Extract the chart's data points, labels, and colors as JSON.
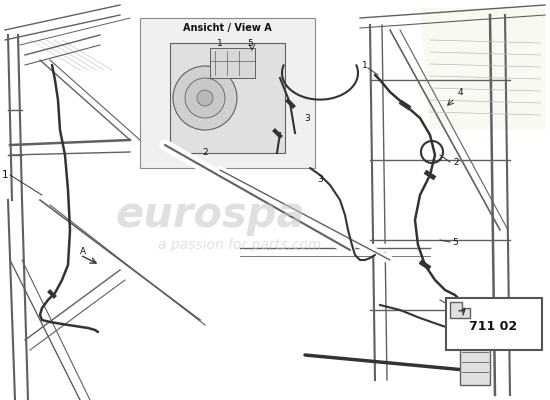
{
  "background_color": "#f2f2f2",
  "title": "",
  "ansicht_label": "Ansicht / View A",
  "part_number": "711 02",
  "watermark_line1": "eurospa",
  "watermark_line2": "a passion for parts.com",
  "wm_color": "#c8c8c8",
  "lc": "#606060",
  "lc_dark": "#333333",
  "lc_light": "#aaaaaa",
  "label_color": "#111111",
  "white": "#ffffff"
}
